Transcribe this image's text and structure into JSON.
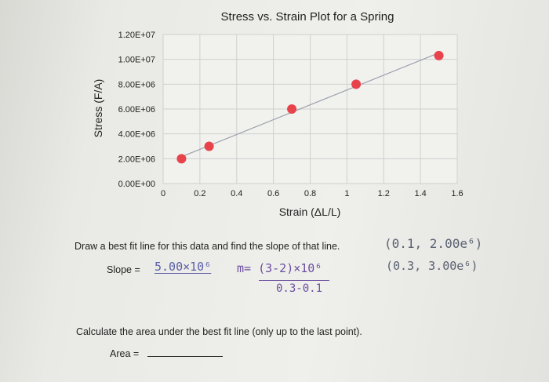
{
  "chart_data": {
    "type": "scatter",
    "title": "Stress vs. Strain Plot for a Spring",
    "xlabel": "Strain (ΔL/L)",
    "ylabel": "Stress (F/A)",
    "x_ticks": [
      "0",
      "0.2",
      "0.4",
      "0.6",
      "0.8",
      "1",
      "1.2",
      "1.4",
      "1.6"
    ],
    "y_ticks": [
      "0.00E+00",
      "2.00E+06",
      "4.00E+06",
      "6.00E+06",
      "8.00E+06",
      "1.00E+07",
      "1.20E+07"
    ],
    "xlim": [
      0,
      1.6
    ],
    "ylim": [
      0,
      12000000
    ],
    "grid": true,
    "trendline": true,
    "points": [
      {
        "x": 0.1,
        "y": 2000000
      },
      {
        "x": 0.25,
        "y": 3000000
      },
      {
        "x": 0.7,
        "y": 6000000
      },
      {
        "x": 1.05,
        "y": 8000000
      },
      {
        "x": 1.5,
        "y": 10300000
      }
    ],
    "colors": {
      "points": "#e8434a",
      "trendline": "#9aa0aa",
      "grid": "#cfcfcf"
    }
  },
  "worksheet": {
    "question1": "Draw a best fit line for this data and find the slope of that line.",
    "slope_label": "Slope =",
    "slope_answer": "5.00×10⁶",
    "work_m": "m= (3-2)×10⁶",
    "work_den": "0.3-0.1",
    "point1": "(0.1, 2.00e⁶)",
    "point2": "(0.3, 3.00e⁶)",
    "question2": "Calculate the area under the best fit line (only up to the last point).",
    "area_label": "Area ="
  }
}
